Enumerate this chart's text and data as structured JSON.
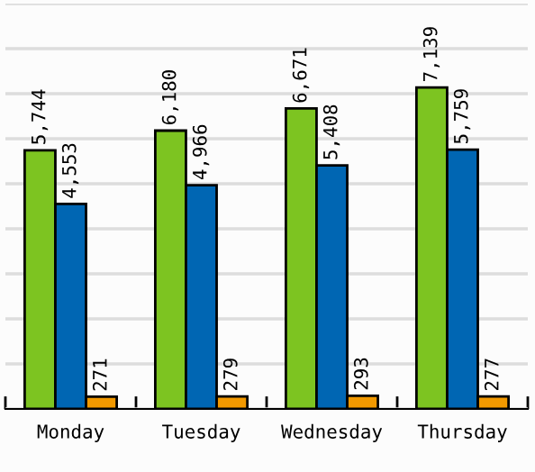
{
  "chart_data": {
    "type": "bar",
    "categories": [
      "Monday",
      "Tuesday",
      "Wednesday",
      "Thursday"
    ],
    "series": [
      {
        "color": "#7dc421",
        "values": [
          5744,
          6180,
          6671,
          7139
        ],
        "value_labels": [
          "5,744",
          "6,180",
          "6,671",
          "7,139"
        ]
      },
      {
        "color": "#0066b3",
        "values": [
          4553,
          4966,
          5408,
          5759
        ],
        "value_labels": [
          "4,553",
          "4,966",
          "5,408",
          "5,759"
        ]
      },
      {
        "color": "#f29900",
        "values": [
          271,
          279,
          293,
          277
        ],
        "value_labels": [
          "271",
          "279",
          "293",
          "277"
        ]
      }
    ],
    "ylim": [
      0,
      9000
    ],
    "yticks": [
      {
        "value": 0,
        "label": null
      },
      {
        "value": 1000,
        "label": null
      },
      {
        "value": 2000,
        "label": null
      },
      {
        "value": 3000,
        "label": null
      },
      {
        "value": 4000,
        "label": null
      },
      {
        "value": 5000,
        "label": null
      },
      {
        "value": 6000,
        "label": null
      },
      {
        "value": 7000,
        "label": null
      },
      {
        "value": 8000,
        "label": null
      },
      {
        "value": 9000,
        "label": null
      }
    ],
    "grid": "y",
    "tick_labels": "x"
  }
}
